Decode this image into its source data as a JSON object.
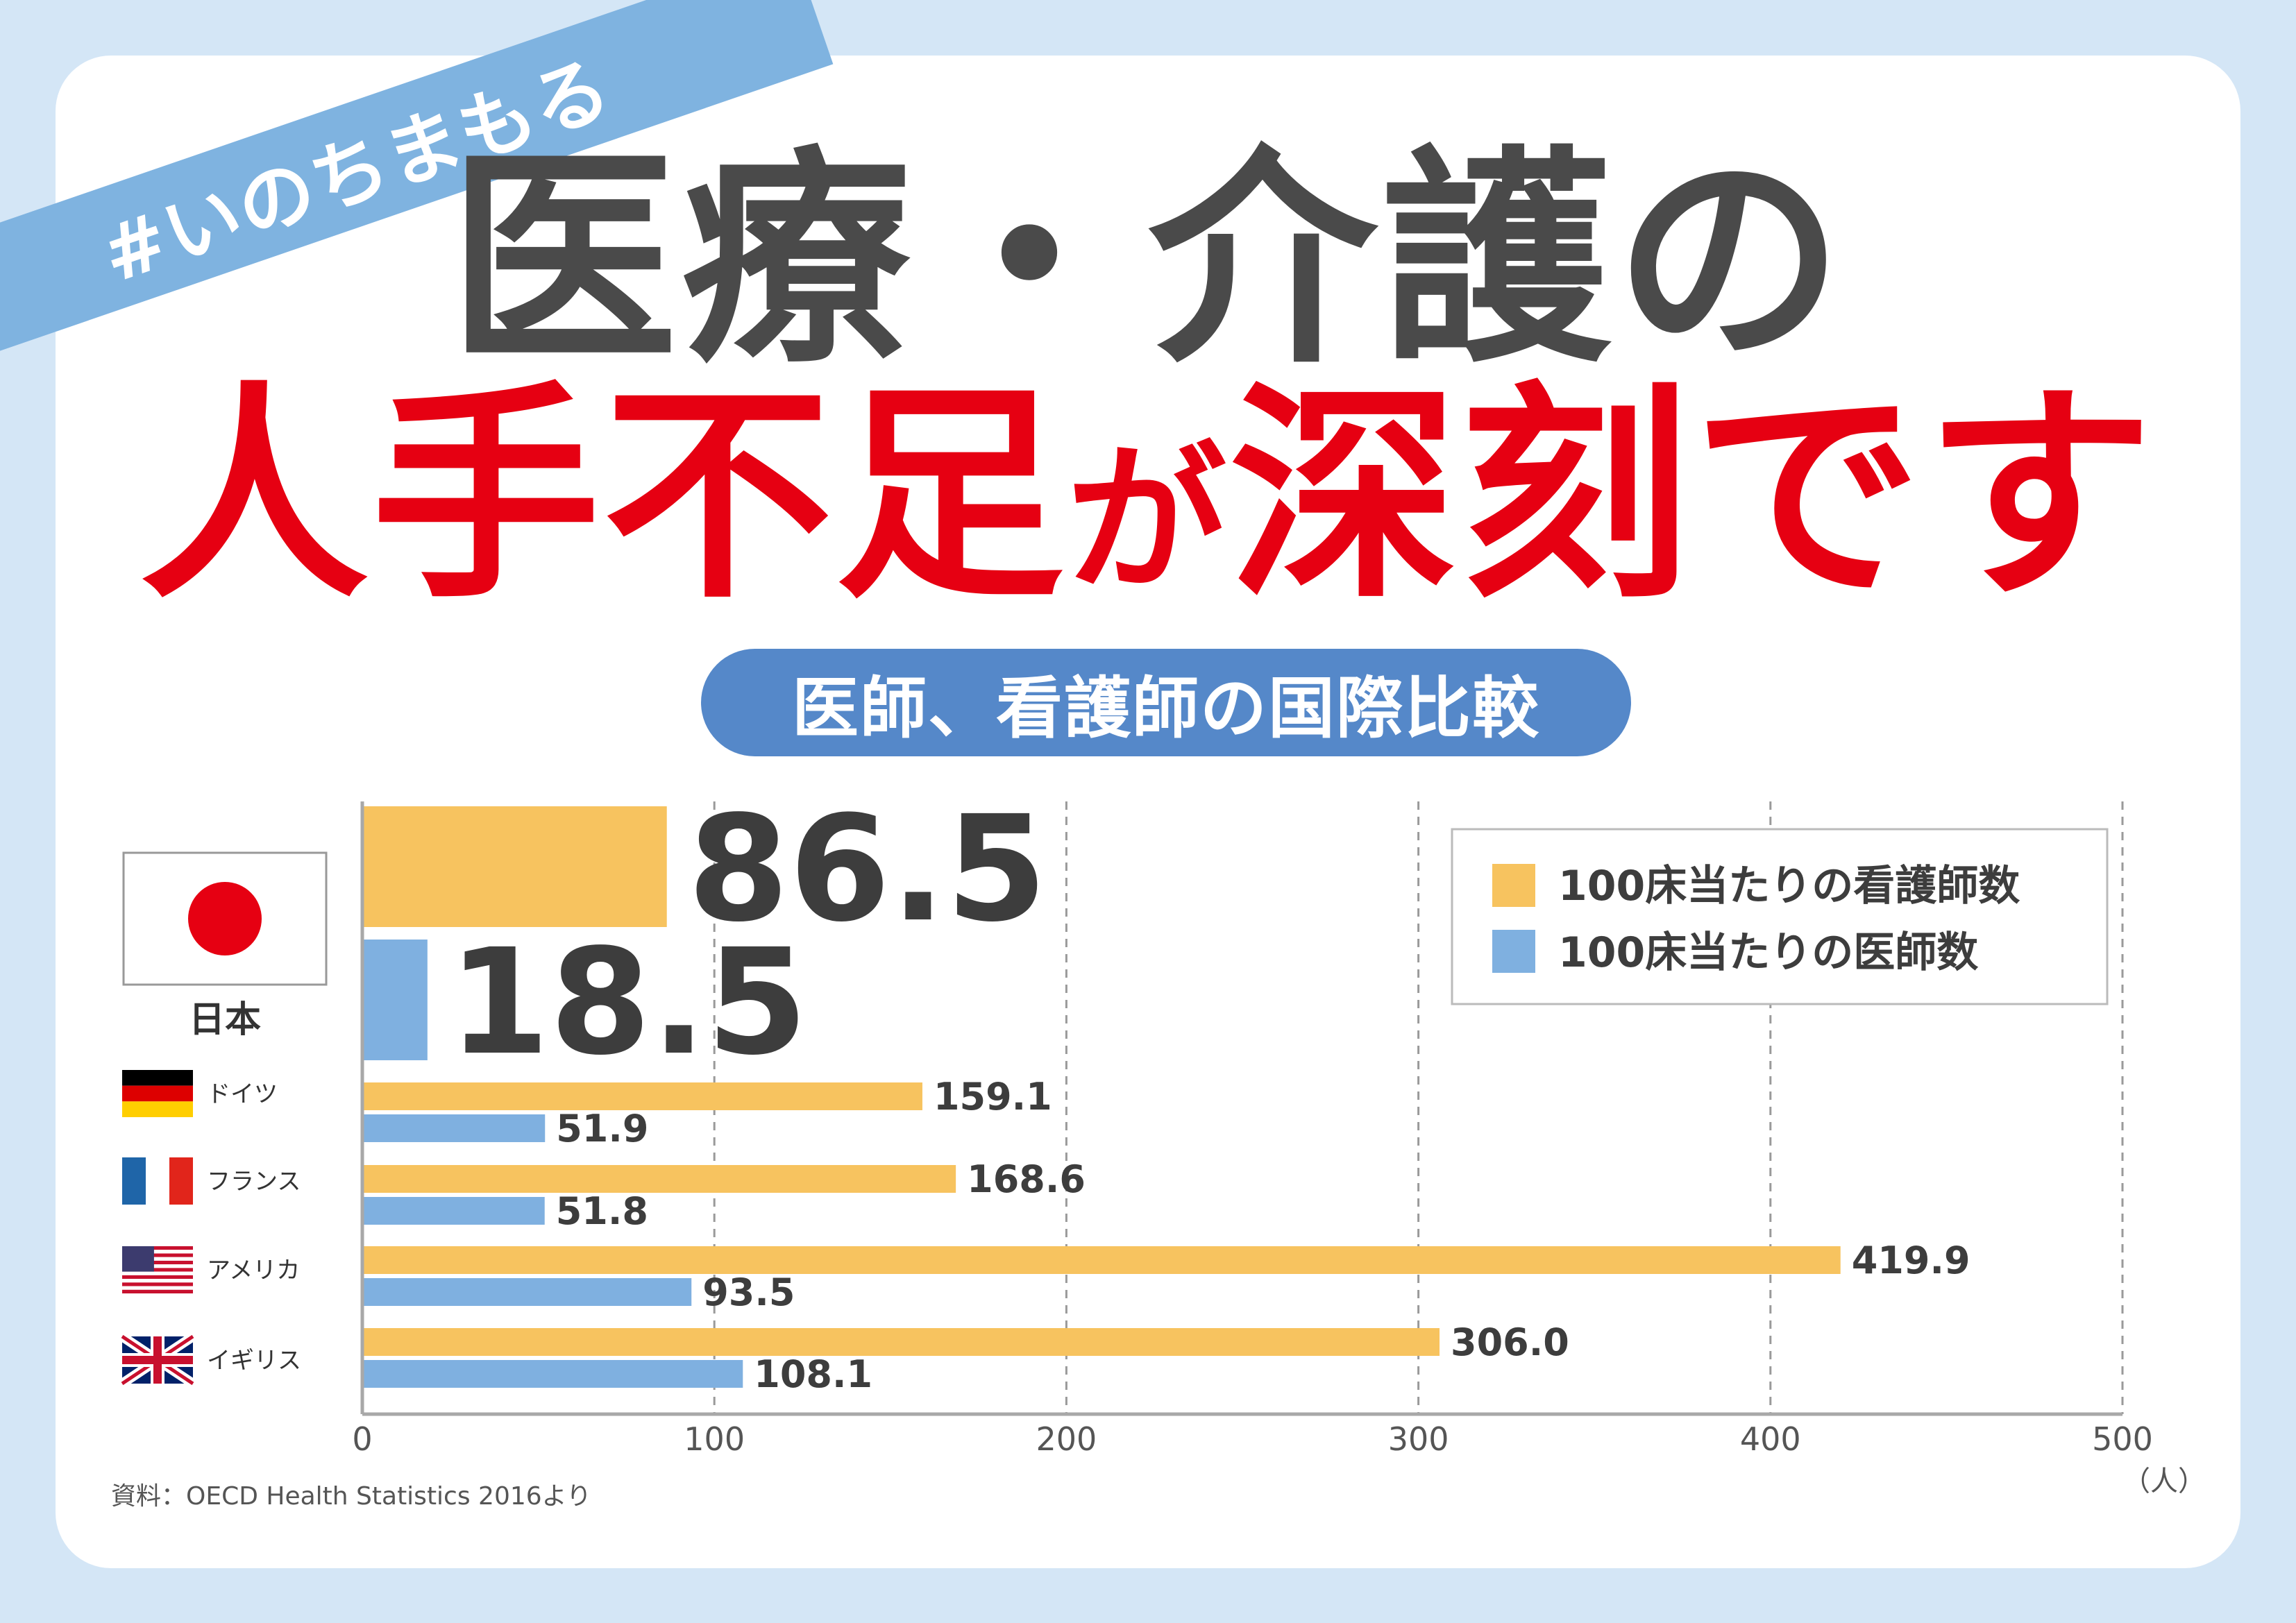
{
  "tag": "#いのちまもる",
  "headline": {
    "line1": "医療・介護の",
    "line2_part1": "人手不足",
    "line2_part2": "が",
    "line2_part3": "深刻です"
  },
  "subtitle": "医師、看護師の国際比較",
  "source": "資料：OECD Health Statistics 2016より",
  "colors": {
    "nurse": "#f7c35f",
    "doctor": "#7fb0e0",
    "headline_red": "#e60012",
    "headline_gray": "#4a4a4a",
    "pill": "#5588c9",
    "ribbon": "#7fb3e0",
    "background": "#d4e6f6"
  },
  "chart_data": {
    "type": "bar",
    "orientation": "horizontal",
    "categories": [
      "日本",
      "ドイツ",
      "フランス",
      "アメリカ",
      "イギリス"
    ],
    "flags": [
      "japan-flag-icon",
      "germany-flag-icon",
      "france-flag-icon",
      "usa-flag-icon",
      "uk-flag-icon"
    ],
    "series": [
      {
        "name": "100床当たりの看護師数",
        "values": [
          86.5,
          159.1,
          168.6,
          419.9,
          306.0
        ],
        "labels": [
          "86.5",
          "159.1",
          "168.6",
          "419.9",
          "306.0"
        ]
      },
      {
        "name": "100床当たりの医師数",
        "values": [
          18.5,
          51.9,
          51.8,
          93.5,
          108.1
        ],
        "labels": [
          "18.5",
          "51.9",
          "51.8",
          "93.5",
          "108.1"
        ]
      }
    ],
    "xlim": [
      0,
      500
    ],
    "xticks": [
      "0",
      "100",
      "200",
      "300",
      "400",
      "500"
    ],
    "xunit": "（人）",
    "grid": true,
    "legend": "top-right"
  }
}
